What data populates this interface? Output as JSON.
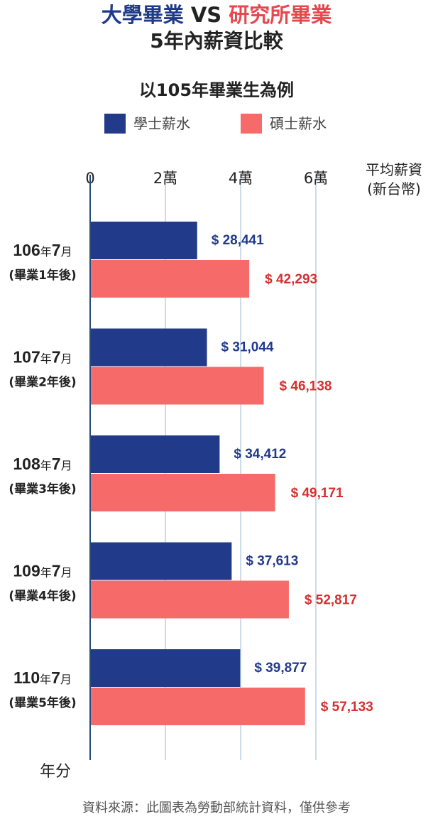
{
  "header": {
    "title_part1": "大學畢業",
    "title_vs": "VS",
    "title_part2": "研究所畢業",
    "title_line2": "5年內薪資比較",
    "subtitle": "以105年畢業生為例"
  },
  "legend": [
    {
      "label": "學士薪水",
      "color": "#213a8a"
    },
    {
      "label": "碩士薪水",
      "color": "#f66a6a"
    }
  ],
  "unit_label": {
    "line1": "平均薪資",
    "line2": "(新台幣)"
  },
  "y_axis_title": "年分",
  "source": "資料來源：此圖表為勞動部統計資料，僅供參考",
  "colors": {
    "bachelor_bar": "#213a8a",
    "master_bar": "#f66a6a",
    "bachelor_text": "#213a8a",
    "master_text": "#d62f2f",
    "grid": "#aac6dc",
    "axis": "#2b4b7a"
  },
  "chart_data": {
    "type": "bar",
    "orientation": "horizontal",
    "categories": [
      {
        "main": "106",
        "year_unit": "年",
        "month": "7",
        "month_unit": "月",
        "sub": "(畢業1年後)"
      },
      {
        "main": "107",
        "year_unit": "年",
        "month": "7",
        "month_unit": "月",
        "sub": "(畢業2年後)"
      },
      {
        "main": "108",
        "year_unit": "年",
        "month": "7",
        "month_unit": "月",
        "sub": "(畢業3年後)"
      },
      {
        "main": "109",
        "year_unit": "年",
        "month": "7",
        "month_unit": "月",
        "sub": "(畢業4年後)"
      },
      {
        "main": "110",
        "year_unit": "年",
        "month": "7",
        "month_unit": "月",
        "sub": "(畢業5年後)"
      }
    ],
    "series": [
      {
        "name": "學士薪水",
        "values": [
          28441,
          31044,
          34412,
          37613,
          39877
        ],
        "labels": [
          "$ 28,441",
          "$ 31,044",
          "$ 34,412",
          "$ 37,613",
          "$ 39,877"
        ]
      },
      {
        "name": "碩士薪水",
        "values": [
          42293,
          46138,
          49171,
          52817,
          57133
        ],
        "labels": [
          "$ 42,293",
          "$ 46,138",
          "$ 49,171",
          "$ 52,817",
          "$ 57,133"
        ]
      }
    ],
    "xlim": [
      0,
      80000
    ],
    "x_ticks": [
      {
        "value": 0,
        "label": "0"
      },
      {
        "value": 20000,
        "label": "2萬"
      },
      {
        "value": 40000,
        "label": "4萬"
      },
      {
        "value": 60000,
        "label": "6萬"
      }
    ],
    "grid": true,
    "legend_position": "top-center"
  }
}
